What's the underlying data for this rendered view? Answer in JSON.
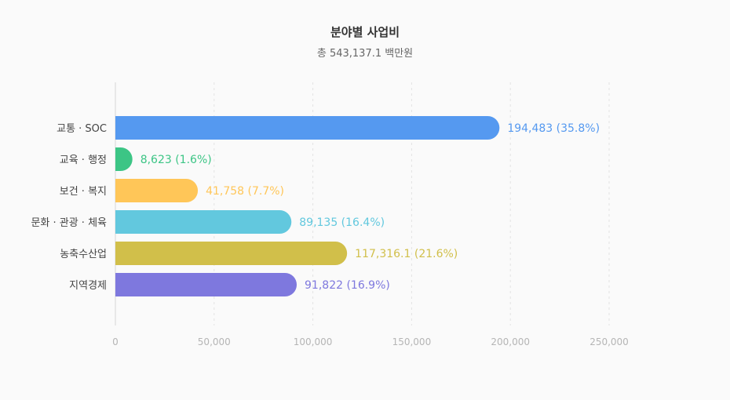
{
  "chart_data": {
    "type": "bar",
    "orientation": "horizontal",
    "title": "분야별 사업비",
    "subtitle": "총 543,137.1 백만원",
    "categories": [
      "교통 · SOC",
      "교육 · 행정",
      "보건 · 복지",
      "문화 · 관광 · 체육",
      "농축수산업",
      "지역경제"
    ],
    "values": [
      194483,
      8623,
      41758,
      89135,
      117316.1,
      91822
    ],
    "data_labels": [
      "194,483 (35.8%)",
      "8,623 (1.6%)",
      "41,758 (7.7%)",
      "89,135 (16.4%)",
      "117,316.1 (21.6%)",
      "91,822 (16.9%)"
    ],
    "colors": [
      "#5599f0",
      "#3cc585",
      "#ffc658",
      "#62c8de",
      "#d1bf4a",
      "#7e78de"
    ],
    "xticks": [
      0,
      50000,
      100000,
      150000,
      200000,
      250000
    ],
    "xtick_labels": [
      "0",
      "50,000",
      "100,000",
      "150,000",
      "200,000",
      "250,000"
    ],
    "xlim": [
      0,
      250000
    ],
    "grid": "vertical dashed",
    "legend": "none"
  }
}
